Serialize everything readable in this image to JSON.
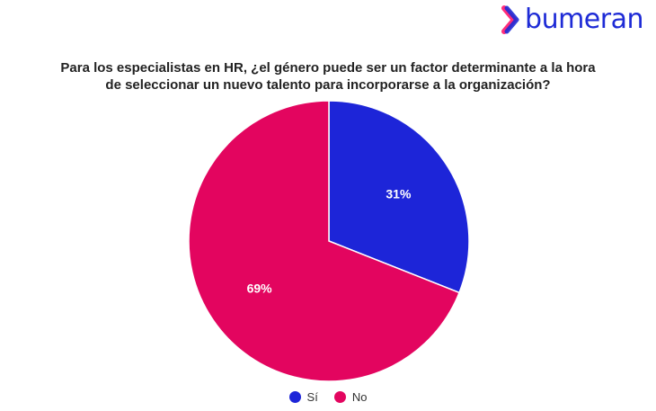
{
  "brand": {
    "name": "bumeran",
    "color": "#1e2bd6",
    "icon": "chevron-right-icon"
  },
  "title_line1": "Para los especialistas en HR, ¿el género puede ser un factor determinante a la hora",
  "title_line2": "de seleccionar un nuevo talento para incorporarse a la organización?",
  "chart_data": {
    "type": "pie",
    "slices": [
      {
        "label": "Sí",
        "value": 31,
        "display": "31%",
        "color": "#1d25d8"
      },
      {
        "label": "No",
        "value": 69,
        "display": "69%",
        "color": "#e3055f"
      }
    ],
    "start": "12 o'clock",
    "direction": "clockwise",
    "legend_position": "bottom"
  }
}
